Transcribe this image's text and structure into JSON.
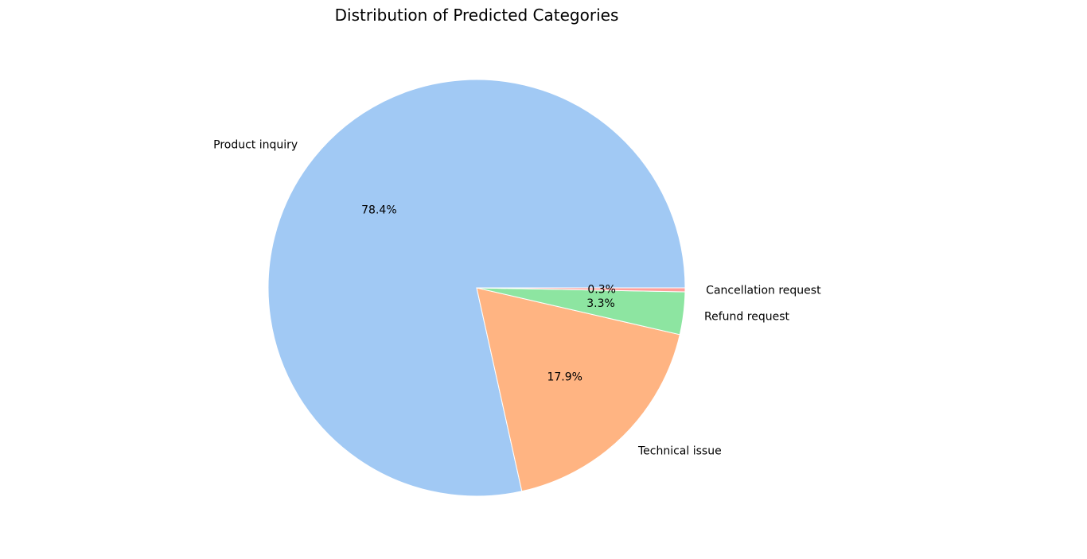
{
  "chart_data": {
    "type": "pie",
    "title": "Distribution of Predicted Categories",
    "start_angle_deg": 0,
    "direction": "counterclockwise",
    "slices": [
      {
        "label": "Product inquiry",
        "value": 78.4,
        "pct_label": "78.4%",
        "color": "#a1c9f4"
      },
      {
        "label": "Technical issue",
        "value": 17.9,
        "pct_label": "17.9%",
        "color": "#ffb482"
      },
      {
        "label": "Refund request",
        "value": 3.3,
        "pct_label": "3.3%",
        "color": "#8de5a1"
      },
      {
        "label": "Cancellation request",
        "value": 0.3,
        "pct_label": "0.3%",
        "color": "#ff9f9b"
      }
    ]
  }
}
